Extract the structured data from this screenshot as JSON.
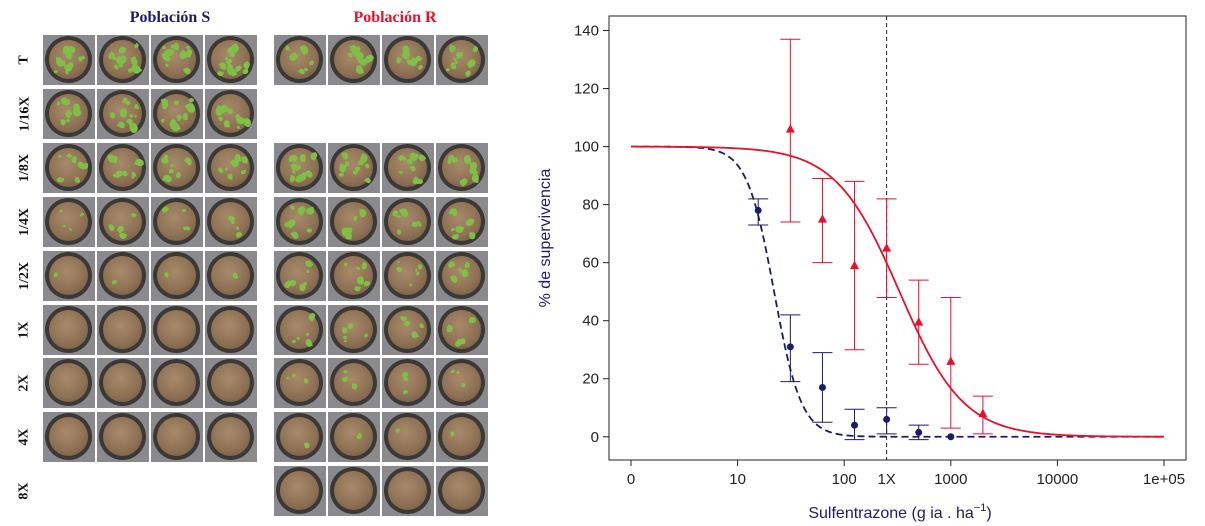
{
  "photo_panel": {
    "population_s": "Población S",
    "population_r": "Población R",
    "row_labels": [
      "T",
      "1/16X",
      "1/8X",
      "1/4X",
      "1/2X",
      "1X",
      "2X",
      "4X",
      "8X"
    ],
    "s_rows": [
      true,
      true,
      true,
      true,
      true,
      true,
      true,
      true,
      false
    ],
    "r_rows": [
      true,
      false,
      true,
      true,
      true,
      true,
      true,
      true,
      true
    ],
    "s_plant_density": [
      0.9,
      0.8,
      0.6,
      0.25,
      0.08,
      0.03,
      0.0,
      0.0,
      0.0
    ],
    "r_plant_density": [
      0.7,
      0.0,
      0.7,
      0.55,
      0.45,
      0.35,
      0.2,
      0.1,
      0.0
    ],
    "colors": {
      "s": "#1b1b6b",
      "r": "#e8102a",
      "leaf": "#7fbf45"
    }
  },
  "chart_data": {
    "type": "scatter",
    "xlabel_main": "Sulfentrazone (g ia . ha",
    "xlabel_sup": "−1",
    "xlabel_close": ")",
    "ylabel": "% de supervivencia",
    "xscale": "log",
    "xlim": [
      1,
      100000
    ],
    "ylim": [
      -8,
      145
    ],
    "x_ticks": [
      1,
      10,
      100,
      1000,
      10000,
      100000
    ],
    "x_tick_labels": [
      "0",
      "10",
      "100",
      "1000",
      "10000",
      "1e+05"
    ],
    "y_ticks": [
      0,
      20,
      40,
      60,
      80,
      100,
      120,
      140
    ],
    "y_tick_labels": [
      "0",
      "20",
      "40",
      "60",
      "80",
      "100",
      "120",
      "140"
    ],
    "reference_line": {
      "x": 250,
      "label": "1X"
    },
    "series": [
      {
        "name": "Población S",
        "color": "#1b1b6b",
        "marker": "circle",
        "points": [
          {
            "x": 15.6,
            "y": 78,
            "lo": 73,
            "hi": 82
          },
          {
            "x": 31.25,
            "y": 31,
            "lo": 19,
            "hi": 42
          },
          {
            "x": 62.5,
            "y": 17,
            "lo": 5,
            "hi": 29
          },
          {
            "x": 125,
            "y": 4,
            "lo": -1,
            "hi": 9.5
          },
          {
            "x": 250,
            "y": 6,
            "lo": 1,
            "hi": 10
          },
          {
            "x": 500,
            "y": 1.5,
            "lo": -1,
            "hi": 4
          },
          {
            "x": 1000,
            "y": 0,
            "lo": 0,
            "hi": 0
          }
        ],
        "curve": {
          "style": "dashed",
          "top": 100,
          "ed50": 22,
          "slope": 3.4
        }
      },
      {
        "name": "Población R",
        "color": "#e8102a",
        "marker": "triangle",
        "points": [
          {
            "x": 31.25,
            "y": 106,
            "lo": 74,
            "hi": 137
          },
          {
            "x": 62.5,
            "y": 75,
            "lo": 60,
            "hi": 89
          },
          {
            "x": 125,
            "y": 59,
            "lo": 30,
            "hi": 88
          },
          {
            "x": 250,
            "y": 65,
            "lo": 48,
            "hi": 82
          },
          {
            "x": 500,
            "y": 39.5,
            "lo": 25,
            "hi": 54
          },
          {
            "x": 1000,
            "y": 26,
            "lo": 3,
            "hi": 48
          },
          {
            "x": 2000,
            "y": 8,
            "lo": 1,
            "hi": 14
          }
        ],
        "curve": {
          "style": "solid",
          "top": 100,
          "ed50": 330,
          "slope": 1.45
        }
      }
    ]
  }
}
